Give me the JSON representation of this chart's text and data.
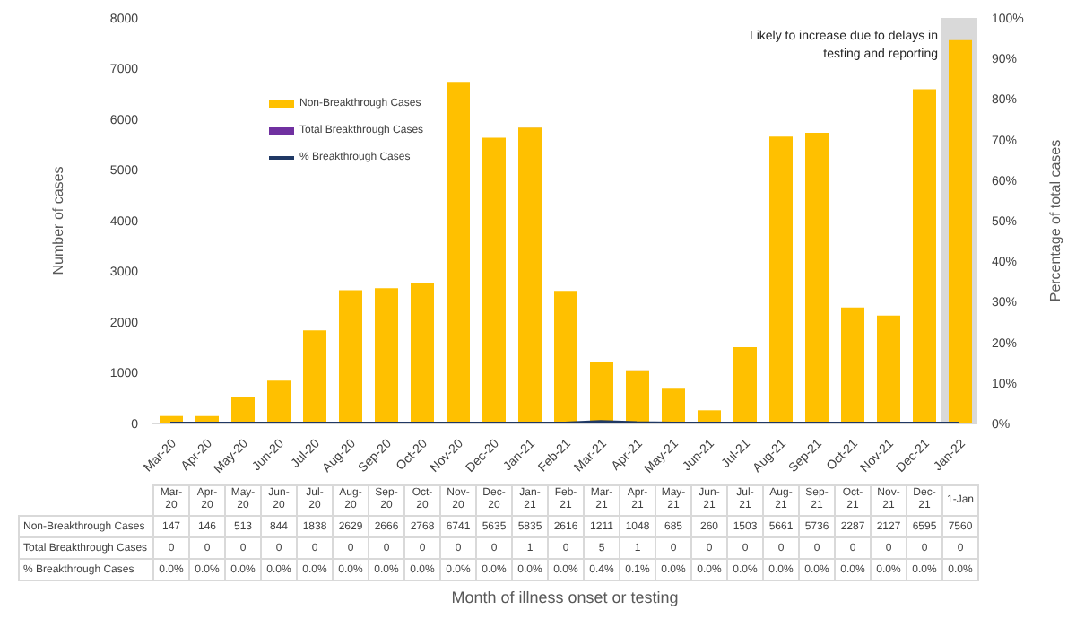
{
  "chart_data": {
    "type": "bar",
    "stacked": true,
    "ylabel": "Number of cases",
    "y2label": "Percentage of total cases",
    "categories": [
      "Mar-20",
      "Apr-20",
      "May-20",
      "Jun-20",
      "Jul-20",
      "Aug-20",
      "Sep-20",
      "Oct-20",
      "Nov-20",
      "Dec-20",
      "Jan-21",
      "Feb-21",
      "Mar-21",
      "Apr-21",
      "May-21",
      "Jun-21",
      "Jul-21",
      "Aug-21",
      "Sep-21",
      "Oct-21",
      "Nov-21",
      "Dec-21",
      "Jan-22"
    ],
    "series": [
      {
        "name": "Non-Breakthrough Cases",
        "color": "#ffc000",
        "values": [
          147,
          146,
          513,
          844,
          1838,
          2629,
          2666,
          2768,
          6741,
          5635,
          5835,
          2616,
          1211,
          1048,
          685,
          260,
          1503,
          5661,
          5736,
          2287,
          2127,
          6595,
          7560
        ]
      },
      {
        "name": "Total Breakthrough Cases",
        "color": "#7030a0",
        "values": [
          0,
          0,
          0,
          0,
          0,
          0,
          0,
          0,
          0,
          0,
          1,
          0,
          5,
          1,
          0,
          0,
          0,
          0,
          0,
          0,
          0,
          0,
          0
        ]
      },
      {
        "name": "% Breakthrough Cases",
        "type": "line",
        "axis": "y2",
        "color": "#1f3864",
        "values": [
          0,
          0,
          0,
          0,
          0,
          0,
          0,
          0,
          0,
          0,
          0,
          0,
          0.4,
          0.1,
          0,
          0,
          0,
          0,
          0,
          0,
          0,
          0,
          0
        ],
        "value_labels": [
          "0.0%",
          "0.0%",
          "0.0%",
          "0.0%",
          "0.0%",
          "0.0%",
          "0.0%",
          "0.0%",
          "0.0%",
          "0.0%",
          "0.0%",
          "0.0%",
          "0.4%",
          "0.1%",
          "0.0%",
          "0.0%",
          "0.0%",
          "0.0%",
          "0.0%",
          "0.0%",
          "0.0%",
          "0.0%",
          "0.0%"
        ]
      }
    ],
    "ylim": [
      0,
      8000
    ],
    "yticks": [
      0,
      1000,
      2000,
      3000,
      4000,
      5000,
      6000,
      7000,
      8000
    ],
    "y2lim": [
      0,
      100
    ],
    "y2ticks": [
      {
        "value": 0,
        "label": "0%"
      },
      {
        "value": 10,
        "label": "10%"
      },
      {
        "value": 20,
        "label": "20%"
      },
      {
        "value": 30,
        "label": "30%"
      },
      {
        "value": 40,
        "label": "40%"
      },
      {
        "value": 50,
        "label": "50%"
      },
      {
        "value": 60,
        "label": "60%"
      },
      {
        "value": 70,
        "label": "70%"
      },
      {
        "value": 80,
        "label": "80%"
      },
      {
        "value": 90,
        "label": "90%"
      },
      {
        "value": 100,
        "label": "100%"
      }
    ],
    "bands": [
      {
        "axis": "x",
        "from": "Jan-22",
        "to": "Jan-22",
        "label": "Likely to increase due to delays in testing and reporting",
        "color": "#d9d9d9"
      }
    ],
    "annotations": [
      "1-Jan",
      "Month of illness onset or testing"
    ],
    "data_labels": true,
    "grid": false,
    "legend": "top left",
    "marker": "none",
    "line_style": "solid"
  }
}
